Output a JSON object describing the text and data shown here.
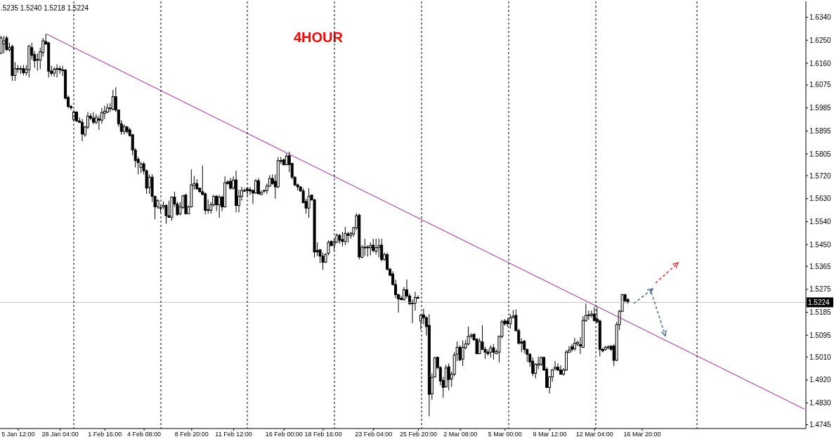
{
  "chart_data": {
    "type": "candlestick",
    "title": "4HOUR",
    "subtitle": ".5235 1.5240 1.5218 1.5224",
    "categories": [
      null,
      null,
      null,
      null,
      null,
      null,
      "5 Jan 12:00",
      null,
      null,
      null,
      null,
      null,
      null,
      null,
      null,
      null,
      null,
      null,
      null,
      null,
      null,
      "28 Jan 04:00",
      null,
      null,
      null,
      null,
      null,
      null,
      null,
      null,
      null,
      null,
      null,
      null,
      null,
      null,
      null,
      "1 Feb 16:00",
      null,
      null,
      null,
      null,
      null,
      null,
      null,
      null,
      null,
      null,
      null,
      null,
      null,
      "4 Feb 08:00",
      null,
      null,
      null,
      null,
      null,
      null,
      null,
      null,
      null,
      null,
      null,
      null,
      null,
      null,
      null,
      null,
      "8 Feb 20:00",
      null,
      null,
      null,
      null,
      null,
      null,
      null,
      null,
      null,
      null,
      null,
      null,
      null,
      null,
      "11 Feb 12:00",
      null,
      null,
      null,
      null,
      null,
      null,
      null,
      null,
      null,
      null,
      null,
      null,
      null,
      null,
      null,
      null,
      null,
      "16 Feb 00:00",
      null,
      null,
      null,
      null,
      null,
      null,
      null,
      null,
      null,
      null,
      null,
      null,
      null,
      "18 Feb 16:00",
      null,
      null,
      null,
      null,
      null,
      null,
      null,
      null,
      null,
      null,
      null,
      null,
      null,
      null,
      null,
      null,
      null,
      "23 Feb 04:00",
      null,
      null,
      null,
      null,
      null,
      null,
      null,
      null,
      null,
      null,
      null,
      null,
      null,
      null,
      null,
      "25 Feb 20:00",
      null,
      null,
      null,
      null,
      null,
      null,
      null,
      null,
      null,
      null,
      null,
      null,
      null,
      null,
      "2 Mar 08:00",
      null,
      null,
      null,
      null,
      null,
      null,
      null,
      null,
      null,
      null,
      null,
      null,
      null,
      null,
      null,
      "5 Mar 00:00",
      null,
      null,
      null,
      null,
      null,
      null,
      null,
      null,
      null,
      null,
      null,
      null,
      null,
      null,
      null,
      "9 Mar 12:00",
      null,
      null,
      null,
      null,
      null,
      null,
      null,
      null,
      null,
      null,
      null,
      null,
      null,
      null,
      null,
      "12 Mar 04:00",
      null,
      null,
      null,
      null,
      null,
      null,
      null,
      null,
      null,
      null,
      null,
      null,
      null,
      null,
      null,
      null,
      "16 Mar 20:00",
      null,
      null,
      null,
      null,
      null,
      null,
      null,
      null,
      null,
      null,
      null,
      null,
      null,
      null,
      null,
      null,
      null,
      null,
      null,
      null,
      null,
      null,
      null,
      null,
      null,
      null,
      null,
      null,
      null,
      null,
      null,
      null,
      null,
      null,
      null,
      null,
      null,
      null,
      null,
      null,
      null,
      null,
      null,
      null,
      null,
      null,
      null,
      null,
      null,
      null,
      null,
      null,
      null,
      null,
      null,
      null,
      null,
      null
    ],
    "ohlc": [
      [
        1.6199,
        1.6267,
        1.6197,
        1.6259
      ],
      [
        1.6235,
        1.6267,
        1.6199,
        1.6248
      ],
      [
        1.6259,
        1.6267,
        1.6208,
        1.6213
      ],
      [
        1.6213,
        1.624,
        1.6205,
        1.6221
      ],
      [
        1.6226,
        1.6232,
        1.6091,
        1.6112
      ],
      [
        1.6112,
        1.6164,
        1.6091,
        1.6139
      ],
      [
        1.6139,
        1.6153,
        1.6123,
        1.6137
      ],
      [
        1.6139,
        1.615,
        1.6118,
        1.6137
      ],
      [
        1.6139,
        1.6153,
        1.6112,
        1.6123
      ],
      [
        1.6123,
        1.6153,
        1.6112,
        1.6137
      ],
      [
        1.6134,
        1.6232,
        1.6104,
        1.6226
      ],
      [
        1.6221,
        1.624,
        1.6175,
        1.6191
      ],
      [
        1.6194,
        1.6208,
        1.6142,
        1.617
      ],
      [
        1.6175,
        1.6199,
        1.6131,
        1.6172
      ],
      [
        1.6172,
        1.6221,
        1.6137,
        1.6205
      ],
      [
        1.6202,
        1.6259,
        1.6186,
        1.6248
      ],
      [
        1.6245,
        1.6275,
        1.6232,
        1.6235
      ],
      [
        1.624,
        1.6243,
        1.6104,
        1.6129
      ],
      [
        1.6129,
        1.615,
        1.611,
        1.6121
      ],
      [
        1.6121,
        1.6145,
        1.6107,
        1.6137
      ],
      [
        1.6139,
        1.6156,
        1.6104,
        1.6137
      ],
      [
        1.6139,
        1.615,
        1.6118,
        1.6134
      ],
      [
        1.6134,
        1.615,
        1.611,
        1.6131
      ],
      [
        1.6134,
        1.6136,
        1.6018,
        1.6023
      ],
      [
        1.6026,
        1.6034,
        1.5983,
        1.5991
      ],
      [
        1.5991,
        1.5996,
        1.5977,
        1.5986
      ],
      [
        1.594,
        1.5977,
        1.5931,
        1.5969
      ],
      [
        1.5969,
        1.5972,
        1.5931,
        1.5934
      ],
      [
        1.5934,
        1.5948,
        1.5926,
        1.5929
      ],
      [
        1.5929,
        1.5942,
        1.5855,
        1.5883
      ],
      [
        1.588,
        1.5915,
        1.5872,
        1.591
      ],
      [
        1.591,
        1.5969,
        1.5902,
        1.5953
      ],
      [
        1.5953,
        1.5964,
        1.5937,
        1.5945
      ],
      [
        1.5945,
        1.5969,
        1.5921,
        1.5929
      ],
      [
        1.5929,
        1.5961,
        1.5921,
        1.5948
      ],
      [
        1.5942,
        1.5956,
        1.5899,
        1.5937
      ],
      [
        1.5937,
        1.5985,
        1.5923,
        1.5967
      ],
      [
        1.5964,
        1.5994,
        1.5942,
        1.5972
      ],
      [
        1.5969,
        1.6002,
        1.5964,
        1.5985
      ],
      [
        1.5983,
        1.6004,
        1.5969,
        1.5985
      ],
      [
        1.598,
        1.6056,
        1.5975,
        1.6029
      ],
      [
        1.6029,
        1.6066,
        1.5969,
        1.5977
      ],
      [
        1.5977,
        1.5979,
        1.5912,
        1.5923
      ],
      [
        1.5923,
        1.5937,
        1.588,
        1.5893
      ],
      [
        1.5893,
        1.5921,
        1.588,
        1.5912
      ],
      [
        1.591,
        1.5915,
        1.5885,
        1.5893
      ],
      [
        1.5899,
        1.5907,
        1.5872,
        1.5877
      ],
      [
        1.588,
        1.5883,
        1.58,
        1.582
      ],
      [
        1.582,
        1.5828,
        1.5752,
        1.5779
      ],
      [
        1.5784,
        1.5793,
        1.5725,
        1.5771
      ],
      [
        1.5752,
        1.5774,
        1.573,
        1.5766
      ],
      [
        1.5766,
        1.5774,
        1.5725,
        1.5739
      ],
      [
        1.5739,
        1.5744,
        1.5649,
        1.5671
      ],
      [
        1.5674,
        1.5725,
        1.5649,
        1.5714
      ],
      [
        1.5714,
        1.5725,
        1.5617,
        1.5639
      ],
      [
        1.5639,
        1.5641,
        1.5549,
        1.5598
      ],
      [
        1.5598,
        1.5628,
        1.559,
        1.5622
      ],
      [
        1.5595,
        1.5603,
        1.5576,
        1.5593
      ],
      [
        1.5598,
        1.5619,
        1.559,
        1.5603
      ],
      [
        1.5603,
        1.5609,
        1.5531,
        1.5563
      ],
      [
        1.5563,
        1.5622,
        1.5555,
        1.5557
      ],
      [
        1.5557,
        1.5639,
        1.5544,
        1.5636
      ],
      [
        1.5636,
        1.5657,
        1.5598,
        1.5609
      ],
      [
        1.5609,
        1.5617,
        1.5563,
        1.5568
      ],
      [
        1.5571,
        1.5617,
        1.5565,
        1.5598
      ],
      [
        1.5595,
        1.5644,
        1.559,
        1.5641
      ],
      [
        1.5644,
        1.5649,
        1.5568,
        1.5571
      ],
      [
        1.5571,
        1.5603,
        1.5568,
        1.5598
      ],
      [
        1.5598,
        1.5744,
        1.5595,
        1.5684
      ],
      [
        1.5681,
        1.5719,
        1.5665,
        1.5689
      ],
      [
        1.5689,
        1.5706,
        1.5665,
        1.5668
      ],
      [
        1.5671,
        1.5673,
        1.5654,
        1.5657
      ],
      [
        1.5657,
        1.576,
        1.5644,
        1.5646
      ],
      [
        1.5649,
        1.5654,
        1.5568,
        1.5584
      ],
      [
        1.5587,
        1.5627,
        1.5571,
        1.5584
      ],
      [
        1.5584,
        1.5617,
        1.5571,
        1.5606
      ],
      [
        1.5606,
        1.5644,
        1.5598,
        1.5639
      ],
      [
        1.5639,
        1.5644,
        1.5581,
        1.5606
      ],
      [
        1.5606,
        1.5644,
        1.5555,
        1.5636
      ],
      [
        1.5636,
        1.5641,
        1.5581,
        1.5598
      ],
      [
        1.5598,
        1.5717,
        1.5595,
        1.5692
      ],
      [
        1.5695,
        1.5703,
        1.5684,
        1.5689
      ],
      [
        1.5698,
        1.5711,
        1.5665,
        1.5671
      ],
      [
        1.5671,
        1.5717,
        1.5665,
        1.5703
      ],
      [
        1.5703,
        1.5739,
        1.5576,
        1.5603
      ],
      [
        1.5603,
        1.5665,
        1.5576,
        1.5639
      ],
      [
        1.5639,
        1.5676,
        1.5622,
        1.5662
      ],
      [
        1.5662,
        1.5671,
        1.5657,
        1.566
      ],
      [
        1.5668,
        1.5676,
        1.5639,
        1.5662
      ],
      [
        1.5665,
        1.5676,
        1.5644,
        1.566
      ],
      [
        1.5662,
        1.5665,
        1.5609,
        1.5652
      ],
      [
        1.5652,
        1.5706,
        1.5649,
        1.57
      ],
      [
        1.57,
        1.5711,
        1.5646,
        1.5649
      ],
      [
        1.5646,
        1.5662,
        1.5644,
        1.5654
      ],
      [
        1.5662,
        1.5665,
        1.5652,
        1.566
      ],
      [
        1.5662,
        1.5689,
        1.5649,
        1.5679
      ],
      [
        1.5679,
        1.5722,
        1.5676,
        1.5709
      ],
      [
        1.5709,
        1.5725,
        1.5684,
        1.5689
      ],
      [
        1.5698,
        1.5725,
        1.563,
        1.5676
      ],
      [
        1.5676,
        1.5793,
        1.5671,
        1.5779
      ],
      [
        1.5779,
        1.5793,
        1.5766,
        1.5776
      ],
      [
        1.5782,
        1.5787,
        1.576,
        1.5763
      ],
      [
        1.5763,
        1.5806,
        1.576,
        1.5796
      ],
      [
        1.5798,
        1.5814,
        1.5733,
        1.5763
      ],
      [
        1.5768,
        1.577,
        1.5706,
        1.5714
      ],
      [
        1.5714,
        1.5717,
        1.5679,
        1.5684
      ],
      [
        1.5684,
        1.5689,
        1.5662,
        1.5676
      ],
      [
        1.5676,
        1.5679,
        1.5657,
        1.566
      ],
      [
        1.566,
        1.5671,
        1.5612,
        1.5614
      ],
      [
        1.5619,
        1.563,
        1.5571,
        1.5593
      ],
      [
        1.5593,
        1.5671,
        1.5555,
        1.5639
      ],
      [
        1.5644,
        1.5646,
        1.5622,
        1.5625
      ],
      [
        1.5625,
        1.563,
        1.54,
        1.5421
      ],
      [
        1.5427,
        1.5459,
        1.5405,
        1.5421
      ],
      [
        1.543,
        1.5432,
        1.5378,
        1.5405
      ],
      [
        1.5405,
        1.5419,
        1.5351,
        1.5381
      ],
      [
        1.5381,
        1.5416,
        1.5378,
        1.5411
      ],
      [
        1.5416,
        1.5467,
        1.5408,
        1.5459
      ],
      [
        1.5462,
        1.5467,
        1.5443,
        1.5446
      ],
      [
        1.5448,
        1.5473,
        1.5427,
        1.5462
      ],
      [
        1.5459,
        1.5494,
        1.5457,
        1.5486
      ],
      [
        1.5486,
        1.5492,
        1.5454,
        1.5467
      ],
      [
        1.547,
        1.55,
        1.5443,
        1.5462
      ],
      [
        1.5462,
        1.5519,
        1.5448,
        1.5494
      ],
      [
        1.5492,
        1.55,
        1.5457,
        1.5486
      ],
      [
        1.5486,
        1.55,
        1.5473,
        1.5494
      ],
      [
        1.5492,
        1.5519,
        1.5481,
        1.5516
      ],
      [
        1.5516,
        1.5573,
        1.5508,
        1.5563
      ],
      [
        1.5565,
        1.5571,
        1.5392,
        1.5402
      ],
      [
        1.54,
        1.5448,
        1.5397,
        1.544
      ],
      [
        1.544,
        1.5473,
        1.5405,
        1.5438
      ],
      [
        1.544,
        1.5448,
        1.5403,
        1.5438
      ],
      [
        1.5438,
        1.5459,
        1.5408,
        1.5446
      ],
      [
        1.5448,
        1.5473,
        1.5419,
        1.5427
      ],
      [
        1.5424,
        1.5473,
        1.5411,
        1.5438
      ],
      [
        1.5438,
        1.5473,
        1.54,
        1.5446
      ],
      [
        1.5448,
        1.5473,
        1.5384,
        1.5392
      ],
      [
        1.5392,
        1.5419,
        1.5386,
        1.5411
      ],
      [
        1.5411,
        1.5419,
        1.5348,
        1.5354
      ],
      [
        1.5354,
        1.5359,
        1.5327,
        1.533
      ],
      [
        1.5335,
        1.5346,
        1.5289,
        1.5294
      ],
      [
        1.5294,
        1.5313,
        1.524,
        1.5254
      ],
      [
        1.5254,
        1.5257,
        1.5184,
        1.5238
      ],
      [
        1.524,
        1.5251,
        1.5232,
        1.5235
      ],
      [
        1.5235,
        1.5284,
        1.523,
        1.5273
      ],
      [
        1.5273,
        1.5313,
        1.524,
        1.5249
      ],
      [
        1.5249,
        1.5259,
        1.5213,
        1.5219
      ],
      [
        1.5224,
        1.5235,
        1.5143,
        1.5219
      ],
      [
        1.5221,
        1.5265,
        1.5192,
        1.5243
      ],
      [
        1.5243,
        1.5251,
        1.5238,
        1.5241
      ],
      [
        1.5151,
        1.5178,
        1.5116,
        1.5173
      ],
      [
        1.5175,
        1.5199,
        1.5137,
        1.5164
      ],
      [
        1.5164,
        1.517,
        1.5094,
        1.5129
      ],
      [
        1.5134,
        1.5178,
        1.4778,
        1.4864
      ],
      [
        1.4866,
        1.4946,
        1.4843,
        1.493
      ],
      [
        1.4932,
        1.5012,
        1.4929,
        1.5006
      ],
      [
        1.5009,
        1.5012,
        1.4962,
        1.4969
      ],
      [
        1.4969,
        1.4975,
        1.4899,
        1.4916
      ],
      [
        1.4918,
        1.4932,
        1.4851,
        1.4891
      ],
      [
        1.4893,
        1.498,
        1.4891,
        1.4967
      ],
      [
        1.4972,
        1.4985,
        1.488,
        1.4922
      ],
      [
        1.4924,
        1.4953,
        1.4893,
        1.4943
      ],
      [
        1.4943,
        1.5029,
        1.4935,
        1.5018
      ],
      [
        1.5021,
        1.5071,
        1.4994,
        1.5048
      ],
      [
        1.5048,
        1.5056,
        1.4994,
        1.4999
      ],
      [
        1.5002,
        1.5075,
        1.4975,
        1.5048
      ],
      [
        1.5046,
        1.5075,
        1.504,
        1.5061
      ],
      [
        1.5061,
        1.5129,
        1.5056,
        1.5091
      ],
      [
        1.5091,
        1.5102,
        1.5083,
        1.5096
      ],
      [
        1.5099,
        1.5102,
        1.5075,
        1.5077
      ],
      [
        1.508,
        1.5083,
        1.5021,
        1.5023
      ],
      [
        1.5023,
        1.5083,
        1.5021,
        1.5072
      ],
      [
        1.5069,
        1.5134,
        1.5037,
        1.504
      ],
      [
        1.504,
        1.505,
        1.5002,
        1.5029
      ],
      [
        1.5029,
        1.504,
        1.5015,
        1.5023
      ],
      [
        1.5029,
        1.5056,
        1.5008,
        1.5046
      ],
      [
        1.5046,
        1.5061,
        1.5,
        1.5029
      ],
      [
        1.5023,
        1.504,
        1.5021,
        1.5031
      ],
      [
        1.5029,
        1.5094,
        1.4989,
        1.5091
      ],
      [
        1.5091,
        1.5156,
        1.5083,
        1.5148
      ],
      [
        1.5151,
        1.5159,
        1.5132,
        1.514
      ],
      [
        1.5151,
        1.5162,
        1.5129,
        1.514
      ],
      [
        1.514,
        1.5178,
        1.5121,
        1.5164
      ],
      [
        1.5164,
        1.5194,
        1.5162,
        1.517
      ],
      [
        1.5173,
        1.5197,
        1.511,
        1.5113
      ],
      [
        1.5113,
        1.5121,
        1.5058,
        1.5064
      ],
      [
        1.5069,
        1.5083,
        1.5029,
        1.5064
      ],
      [
        1.5072,
        1.5077,
        1.5025,
        1.504
      ],
      [
        1.504,
        1.5042,
        1.4991,
        1.5021
      ],
      [
        1.5021,
        1.5025,
        1.4972,
        1.4991
      ],
      [
        1.4994,
        1.5008,
        1.4935,
        1.4946
      ],
      [
        1.4946,
        1.4986,
        1.4926,
        1.4981
      ],
      [
        1.4978,
        1.5012,
        1.4962,
        1.4983
      ],
      [
        1.4981,
        1.5012,
        1.4975,
        1.5008
      ],
      [
        1.5008,
        1.5012,
        1.4956,
        1.4959
      ],
      [
        1.4962,
        1.497,
        1.4888,
        1.4891
      ],
      [
        1.4891,
        1.4935,
        1.4867,
        1.4932
      ],
      [
        1.4932,
        1.4964,
        1.4913,
        1.4959
      ],
      [
        1.4964,
        1.4994,
        1.4956,
        1.497
      ],
      [
        1.497,
        1.4985,
        1.4954,
        1.4959
      ],
      [
        1.4959,
        1.4978,
        1.494,
        1.4943
      ],
      [
        1.4943,
        1.4967,
        1.4937,
        1.4959
      ],
      [
        1.4959,
        1.5037,
        1.4956,
        1.5029
      ],
      [
        1.5029,
        1.5053,
        1.5025,
        1.5037
      ],
      [
        1.505,
        1.5061,
        1.5029,
        1.504
      ],
      [
        1.5042,
        1.5085,
        1.5034,
        1.5064
      ],
      [
        1.5061,
        1.5075,
        1.5053,
        1.5067
      ],
      [
        1.5058,
        1.5088,
        1.5021,
        1.5053
      ],
      [
        1.5048,
        1.517,
        1.5045,
        1.5153
      ],
      [
        1.5153,
        1.5219,
        1.5148,
        1.5173
      ],
      [
        1.5173,
        1.5192,
        1.5156,
        1.5175
      ],
      [
        1.5173,
        1.5192,
        1.5164,
        1.5178
      ],
      [
        1.5178,
        1.5205,
        1.5148,
        1.5153
      ],
      [
        1.5159,
        1.5205,
        1.5143,
        1.5148
      ],
      [
        1.5151,
        1.5156,
        1.5012,
        1.504
      ],
      [
        1.504,
        1.5046,
        1.5029,
        1.5034
      ],
      [
        1.504,
        1.5053,
        1.5034,
        1.5048
      ],
      [
        1.5046,
        1.5056,
        1.504,
        1.505
      ],
      [
        1.5053,
        1.5056,
        1.5034,
        1.504
      ],
      [
        1.5053,
        1.5061,
        1.4975,
        1.4997
      ],
      [
        1.4997,
        1.5148,
        1.4994,
        1.5137
      ],
      [
        1.5137,
        1.5194,
        1.5116,
        1.5189
      ],
      [
        1.5189,
        1.5257,
        1.5186,
        1.5254
      ],
      [
        1.5254,
        1.5257,
        1.5221,
        1.523
      ],
      [
        1.5235,
        1.524,
        1.5218,
        1.5224
      ],
      null,
      null,
      null,
      null,
      null,
      null,
      null,
      null,
      null,
      null,
      null,
      null,
      null,
      null,
      null,
      null,
      null,
      null,
      null,
      null,
      null,
      null,
      null,
      null,
      null,
      null,
      null,
      null,
      null,
      null,
      null,
      null,
      null,
      null,
      null,
      null,
      null,
      null,
      null,
      null,
      null,
      null,
      null,
      null,
      null,
      null,
      null,
      null,
      null,
      null,
      null,
      null,
      null,
      null,
      null,
      null,
      null,
      null,
      null,
      null,
      null,
      null,
      null
    ],
    "series": [
      {
        "type": "line",
        "color": "#a020a0",
        "values": [
          null,
          null,
          null,
          null,
          null,
          null,
          null,
          null,
          null,
          null,
          null,
          null,
          null,
          null,
          null,
          null,
          1.6275,
          null,
          null,
          null,
          null,
          null,
          null,
          null,
          null,
          null,
          null,
          null,
          null,
          null,
          null,
          null,
          null,
          null,
          null,
          null,
          null,
          null,
          null,
          null,
          null,
          null,
          null,
          null,
          null,
          null,
          null,
          null,
          null,
          null,
          null,
          null,
          null,
          null,
          null,
          null,
          null,
          null,
          null,
          null,
          null,
          null,
          null,
          null,
          null,
          null,
          null,
          null,
          null,
          null,
          null,
          null,
          null,
          null,
          null,
          null,
          null,
          null,
          null,
          null,
          null,
          null,
          null,
          null,
          null,
          null,
          null,
          null,
          null,
          null,
          null,
          null,
          null,
          null,
          null,
          null,
          null,
          null,
          null,
          null,
          null,
          null,
          null,
          null,
          null,
          null,
          null,
          null,
          null,
          null,
          null,
          null,
          null,
          null,
          null,
          null,
          null,
          null,
          null,
          null,
          null,
          null,
          null,
          null,
          null,
          null,
          null,
          null,
          null,
          null,
          null,
          null,
          null,
          null,
          null,
          null,
          null,
          null,
          null,
          null,
          null,
          null,
          null,
          null,
          null,
          null,
          null,
          null,
          null,
          null,
          null,
          null,
          null,
          null,
          null,
          null,
          null,
          null,
          null,
          null,
          null,
          null,
          null,
          null,
          null,
          null,
          null,
          null,
          null,
          null,
          null,
          null,
          null,
          null,
          null,
          null,
          null,
          null,
          null,
          null,
          null,
          null,
          null,
          null,
          null,
          null,
          null,
          null,
          null,
          null,
          null,
          null,
          null,
          null,
          null,
          null,
          null,
          null,
          null,
          null,
          null,
          null,
          null,
          null,
          null,
          null,
          null,
          null,
          null,
          null,
          null,
          null,
          null,
          null,
          null,
          null,
          null,
          null,
          null,
          null,
          null,
          null,
          null,
          null,
          null,
          null,
          null,
          null,
          null,
          null,
          null,
          null,
          null,
          null,
          null,
          null,
          null,
          null,
          null,
          null,
          null,
          null,
          null,
          null,
          null,
          null,
          null,
          null,
          null,
          null,
          null,
          null,
          null,
          null,
          null,
          null,
          null,
          null,
          null,
          null,
          null,
          null,
          null,
          null,
          null,
          null,
          null,
          null,
          null,
          null,
          null,
          null,
          null,
          null,
          null,
          null,
          null,
          null,
          null,
          null,
          null,
          null,
          null,
          null,
          null,
          null,
          null,
          1.4806
        ]
      }
    ],
    "ylim": [
      1.473,
      1.6402
    ],
    "yticks": [
      {
        "value": 1.634,
        "label": "1.6340"
      },
      {
        "value": 1.625,
        "label": "1.6250"
      },
      {
        "value": 1.616,
        "label": "1.6160"
      },
      1.6075,
      1.5985,
      1.5895,
      1.5805,
      {
        "value": 1.572,
        "label": "1.5720"
      },
      {
        "value": 1.563,
        "label": "1.5630"
      },
      {
        "value": 1.554,
        "label": "1.5540"
      },
      {
        "value": 1.545,
        "label": "1.5450"
      },
      1.5365,
      1.5275,
      1.5185,
      1.5095,
      {
        "value": 1.501,
        "label": "1.5010"
      },
      {
        "value": 1.492,
        "label": "1.4920"
      },
      {
        "value": 1.483,
        "label": "1.4830"
      },
      1.4745
    ],
    "ref_lines": [
      {
        "axis": "y",
        "value": 1.5224,
        "label": "1.5224",
        "color": "#c0c0c0",
        "line_style": "solid"
      }
    ]
  }
}
